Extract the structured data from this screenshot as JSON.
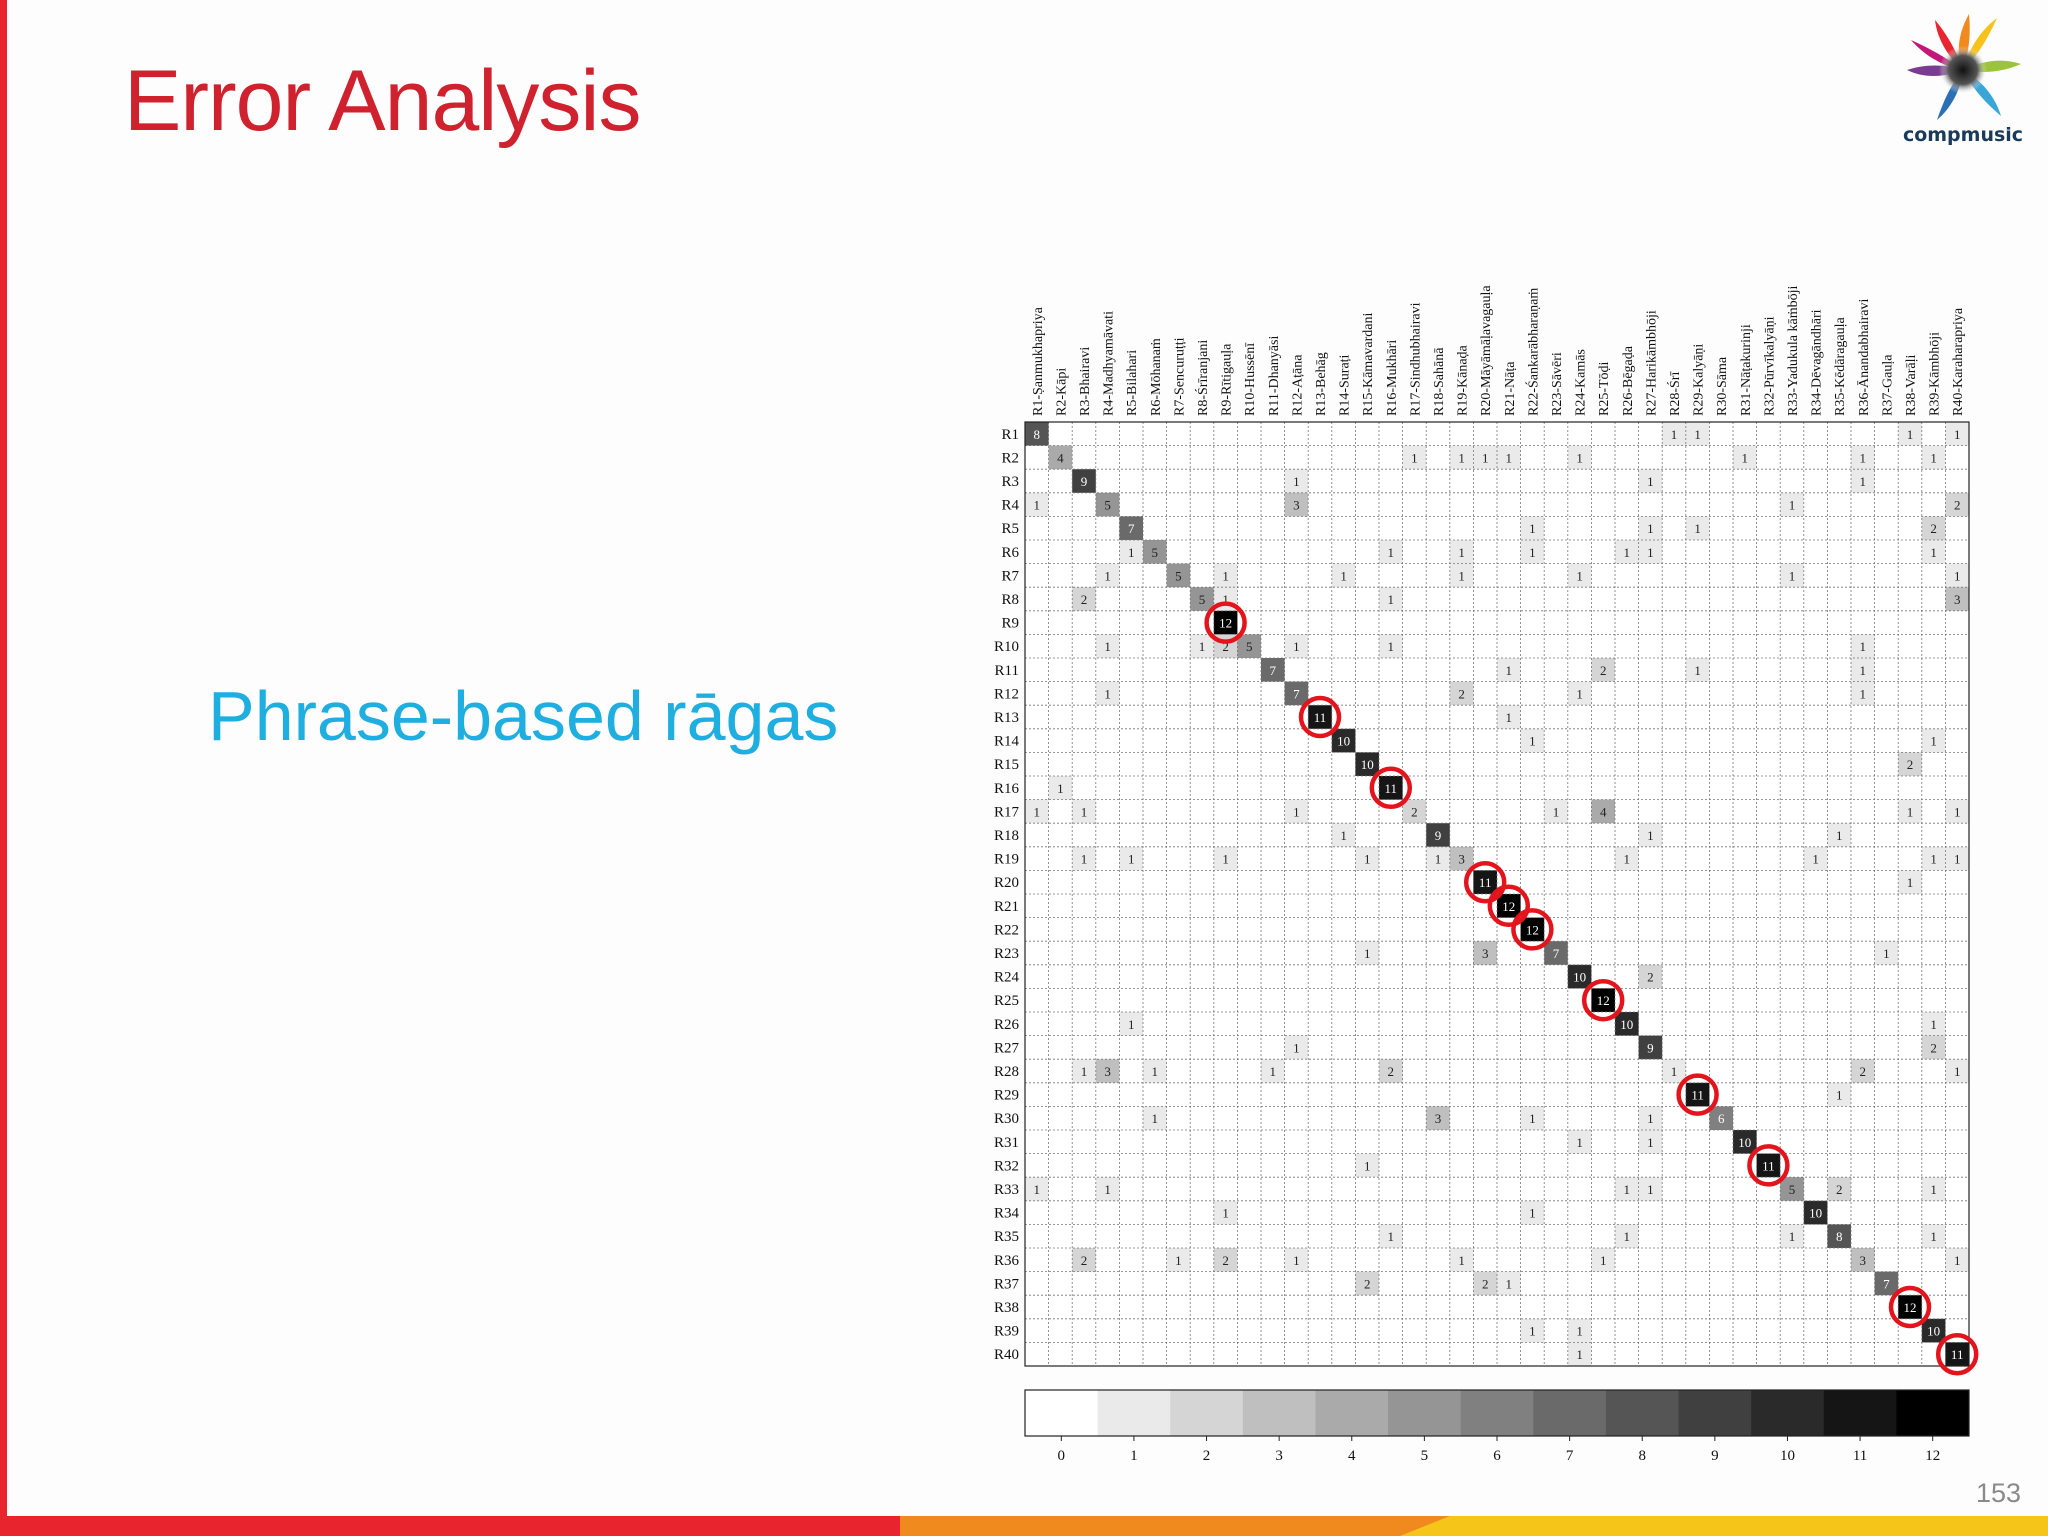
{
  "slide": {
    "title": "Error Analysis",
    "subtitle": "Phrase-based rāgas",
    "page_number": "153",
    "logo_text": "compmusic"
  },
  "colors": {
    "title": "#d0212e",
    "subtitle": "#1eaee0",
    "left_bar": "#e8252e",
    "highlight_circle": "#e3141c",
    "bottom_band": [
      "#e8252e",
      "#f08a1e",
      "#f6c51a"
    ]
  },
  "chart_data": {
    "type": "heatmap",
    "title": "",
    "column_labels": [
      "R1-Ṣanmukhapriya",
      "R2-Kāpi",
      "R3-Bhairavi",
      "R4-Madhyamāvati",
      "R5-Bilahari",
      "R6-Mōhanaṁ",
      "R7-Sencuruṭṭi",
      "R8-Śrīranjani",
      "R9-Rītigauḷa",
      "R10-Hussēnī",
      "R11-Dhanyāsi",
      "R12-Aṭāna",
      "R13-Behāg",
      "R14-Suraṭi",
      "R15-Kāmavardani",
      "R16-Mukhāri",
      "R17-Sindhubhairavi",
      "R18-Sahānā",
      "R19-Kānaḍa",
      "R20-Māyāmāḷavagauḷa",
      "R21-Nāṭa",
      "R22-Śankarābharaṇaṁ",
      "R23-Sāvēri",
      "R24-Kamās",
      "R25-Tōḍi",
      "R26-Bēgaḍa",
      "R27-Harikāmbhōji",
      "R28-Śrī",
      "R29-Kalyāṇi",
      "R30-Sāma",
      "R31-Nāṭakurinji",
      "R32-Pūrvīkalyāṇi",
      "R33-Yadukula kāṁbōji",
      "R34-Dēvagāndhāri",
      "R35-Kēdāragauḷa",
      "R36-Ānandabhairavi",
      "R37-Gauḷa",
      "R38-Varāḷi",
      "R39-Kāmbhōji",
      "R40-Karaharapriya"
    ],
    "row_labels": [
      "R1",
      "R2",
      "R3",
      "R4",
      "R5",
      "R6",
      "R7",
      "R8",
      "R9",
      "R10",
      "R11",
      "R12",
      "R13",
      "R14",
      "R15",
      "R16",
      "R17",
      "R18",
      "R19",
      "R20",
      "R21",
      "R22",
      "R23",
      "R24",
      "R25",
      "R26",
      "R27",
      "R28",
      "R29",
      "R30",
      "R31",
      "R32",
      "R33",
      "R34",
      "R35",
      "R36",
      "R37",
      "R38",
      "R39",
      "R40"
    ],
    "cells": [
      [
        1,
        1,
        8
      ],
      [
        1,
        28,
        1
      ],
      [
        1,
        29,
        1
      ],
      [
        1,
        38,
        1
      ],
      [
        1,
        40,
        1
      ],
      [
        2,
        2,
        4
      ],
      [
        2,
        17,
        1
      ],
      [
        2,
        19,
        1
      ],
      [
        2,
        20,
        1
      ],
      [
        2,
        21,
        1
      ],
      [
        2,
        24,
        1
      ],
      [
        2,
        31,
        1
      ],
      [
        2,
        36,
        1
      ],
      [
        2,
        39,
        1
      ],
      [
        3,
        3,
        9
      ],
      [
        3,
        12,
        1
      ],
      [
        3,
        27,
        1
      ],
      [
        3,
        36,
        1
      ],
      [
        4,
        1,
        1
      ],
      [
        4,
        4,
        5
      ],
      [
        4,
        12,
        3
      ],
      [
        4,
        33,
        1
      ],
      [
        4,
        40,
        2
      ],
      [
        5,
        5,
        7
      ],
      [
        5,
        22,
        1
      ],
      [
        5,
        27,
        1
      ],
      [
        5,
        29,
        1
      ],
      [
        5,
        39,
        2
      ],
      [
        6,
        5,
        1
      ],
      [
        6,
        6,
        5
      ],
      [
        6,
        16,
        1
      ],
      [
        6,
        19,
        1
      ],
      [
        6,
        22,
        1
      ],
      [
        6,
        26,
        1
      ],
      [
        6,
        27,
        1
      ],
      [
        6,
        39,
        1
      ],
      [
        7,
        4,
        1
      ],
      [
        7,
        7,
        5
      ],
      [
        7,
        9,
        1
      ],
      [
        7,
        14,
        1
      ],
      [
        7,
        19,
        1
      ],
      [
        7,
        24,
        1
      ],
      [
        7,
        33,
        1
      ],
      [
        7,
        40,
        1
      ],
      [
        8,
        3,
        2
      ],
      [
        8,
        8,
        5
      ],
      [
        8,
        9,
        1
      ],
      [
        8,
        16,
        1
      ],
      [
        8,
        40,
        3
      ],
      [
        9,
        9,
        12
      ],
      [
        10,
        4,
        1
      ],
      [
        10,
        8,
        1
      ],
      [
        10,
        9,
        2
      ],
      [
        10,
        10,
        5
      ],
      [
        10,
        12,
        1
      ],
      [
        10,
        16,
        1
      ],
      [
        10,
        36,
        1
      ],
      [
        11,
        11,
        7
      ],
      [
        11,
        21,
        1
      ],
      [
        11,
        25,
        2
      ],
      [
        11,
        29,
        1
      ],
      [
        11,
        36,
        1
      ],
      [
        12,
        4,
        1
      ],
      [
        12,
        12,
        7
      ],
      [
        12,
        19,
        2
      ],
      [
        12,
        24,
        1
      ],
      [
        12,
        36,
        1
      ],
      [
        13,
        13,
        11
      ],
      [
        13,
        21,
        1
      ],
      [
        14,
        14,
        10
      ],
      [
        14,
        22,
        1
      ],
      [
        14,
        39,
        1
      ],
      [
        15,
        15,
        10
      ],
      [
        15,
        38,
        2
      ],
      [
        16,
        2,
        1
      ],
      [
        16,
        16,
        11
      ],
      [
        17,
        1,
        1
      ],
      [
        17,
        3,
        1
      ],
      [
        17,
        12,
        1
      ],
      [
        17,
        17,
        2
      ],
      [
        17,
        23,
        1
      ],
      [
        17,
        25,
        4
      ],
      [
        17,
        38,
        1
      ],
      [
        17,
        40,
        1
      ],
      [
        18,
        14,
        1
      ],
      [
        18,
        18,
        9
      ],
      [
        18,
        27,
        1
      ],
      [
        18,
        35,
        1
      ],
      [
        19,
        3,
        1
      ],
      [
        19,
        5,
        1
      ],
      [
        19,
        9,
        1
      ],
      [
        19,
        15,
        1
      ],
      [
        19,
        18,
        1
      ],
      [
        19,
        19,
        3
      ],
      [
        19,
        26,
        1
      ],
      [
        19,
        34,
        1
      ],
      [
        19,
        39,
        1
      ],
      [
        19,
        40,
        1
      ],
      [
        20,
        20,
        11
      ],
      [
        20,
        38,
        1
      ],
      [
        21,
        21,
        12
      ],
      [
        22,
        22,
        12
      ],
      [
        23,
        15,
        1
      ],
      [
        23,
        20,
        3
      ],
      [
        23,
        23,
        7
      ],
      [
        23,
        37,
        1
      ],
      [
        24,
        24,
        10
      ],
      [
        24,
        27,
        2
      ],
      [
        25,
        25,
        12
      ],
      [
        26,
        5,
        1
      ],
      [
        26,
        26,
        10
      ],
      [
        26,
        39,
        1
      ],
      [
        27,
        12,
        1
      ],
      [
        27,
        27,
        9
      ],
      [
        27,
        39,
        2
      ],
      [
        28,
        3,
        1
      ],
      [
        28,
        4,
        3
      ],
      [
        28,
        6,
        1
      ],
      [
        28,
        11,
        1
      ],
      [
        28,
        16,
        2
      ],
      [
        28,
        28,
        1
      ],
      [
        28,
        36,
        2
      ],
      [
        28,
        40,
        1
      ],
      [
        29,
        29,
        11
      ],
      [
        29,
        35,
        1
      ],
      [
        30,
        6,
        1
      ],
      [
        30,
        18,
        3
      ],
      [
        30,
        22,
        1
      ],
      [
        30,
        27,
        1
      ],
      [
        30,
        30,
        6
      ],
      [
        31,
        24,
        1
      ],
      [
        31,
        27,
        1
      ],
      [
        31,
        31,
        10
      ],
      [
        32,
        15,
        1
      ],
      [
        32,
        32,
        11
      ],
      [
        33,
        1,
        1
      ],
      [
        33,
        4,
        1
      ],
      [
        33,
        26,
        1
      ],
      [
        33,
        27,
        1
      ],
      [
        33,
        33,
        5
      ],
      [
        33,
        35,
        2
      ],
      [
        33,
        39,
        1
      ],
      [
        34,
        9,
        1
      ],
      [
        34,
        22,
        1
      ],
      [
        34,
        34,
        10
      ],
      [
        35,
        16,
        1
      ],
      [
        35,
        26,
        1
      ],
      [
        35,
        33,
        1
      ],
      [
        35,
        35,
        8
      ],
      [
        35,
        39,
        1
      ],
      [
        36,
        3,
        2
      ],
      [
        36,
        7,
        1
      ],
      [
        36,
        9,
        2
      ],
      [
        36,
        12,
        1
      ],
      [
        36,
        19,
        1
      ],
      [
        36,
        25,
        1
      ],
      [
        36,
        36,
        3
      ],
      [
        36,
        40,
        1
      ],
      [
        37,
        15,
        2
      ],
      [
        37,
        20,
        2
      ],
      [
        37,
        21,
        1
      ],
      [
        37,
        37,
        7
      ],
      [
        38,
        38,
        12
      ],
      [
        39,
        22,
        1
      ],
      [
        39,
        24,
        1
      ],
      [
        39,
        39,
        10
      ],
      [
        40,
        24,
        1
      ],
      [
        40,
        40,
        11
      ]
    ],
    "highlighted": [
      9,
      13,
      16,
      20,
      21,
      22,
      25,
      29,
      32,
      38,
      40
    ],
    "colorbar": {
      "min": 0,
      "max": 12,
      "ticks": [
        0,
        1,
        2,
        3,
        4,
        5,
        6,
        7,
        8,
        9,
        10,
        11,
        12
      ],
      "colormap": "white-to-black"
    },
    "grid": true
  }
}
